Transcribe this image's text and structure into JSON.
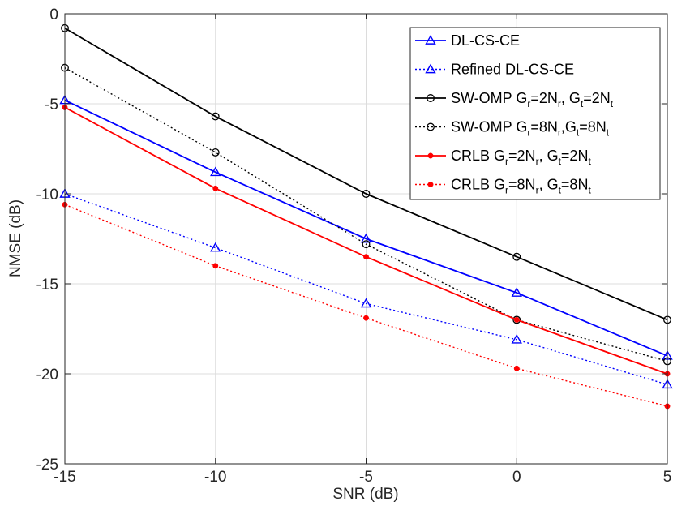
{
  "chart_data": {
    "type": "line",
    "title": "",
    "xlabel": "SNR (dB)",
    "ylabel": "NMSE (dB)",
    "xlim": [
      -15,
      5
    ],
    "ylim": [
      -25,
      0
    ],
    "xticks": [
      -15,
      -10,
      -5,
      0,
      5
    ],
    "yticks": [
      0,
      -5,
      -10,
      -15,
      -20,
      -25
    ],
    "xtick_labels": [
      "-15",
      "-10",
      "-5",
      "0",
      "5"
    ],
    "ytick_labels": [
      "0",
      "-5",
      "-10",
      "-15",
      "-20",
      "-25"
    ],
    "grid": true,
    "legend_position": "top-right",
    "x": [
      -15,
      -10,
      -5,
      0,
      5
    ],
    "series": [
      {
        "name": "DL-CS-CE",
        "legend": [
          "DL-CS-CE"
        ],
        "color": "#0000ff",
        "dash": "solid",
        "marker": "triangle-open",
        "values": [
          -4.8,
          -8.8,
          -12.5,
          -15.5,
          -19.0
        ]
      },
      {
        "name": "Refined DL-CS-CE",
        "legend": [
          "Refined DL-CS-CE"
        ],
        "color": "#0000ff",
        "dash": "dotted",
        "marker": "triangle-open",
        "values": [
          -10.0,
          -13.0,
          -16.1,
          -18.1,
          -20.6
        ]
      },
      {
        "name": "SW-OMP Gr=2Nr, Gt=2Nt",
        "legend": [
          "SW-OMP G",
          "r",
          "=2N",
          "r",
          ", G",
          "t",
          "=2N",
          "t"
        ],
        "color": "#000000",
        "dash": "solid",
        "marker": "circle-open",
        "values": [
          -0.8,
          -5.7,
          -10.0,
          -13.5,
          -17.0
        ]
      },
      {
        "name": "SW-OMP Gr=8Nr,Gt=8Nt",
        "legend": [
          "SW-OMP G",
          "r",
          "=8N",
          "r",
          ",G",
          "t",
          "=8N",
          "t"
        ],
        "color": "#000000",
        "dash": "dotted",
        "marker": "circle-open",
        "values": [
          -3.0,
          -7.7,
          -12.8,
          -17.0,
          -19.3
        ]
      },
      {
        "name": "CRLB Gr=2Nr, Gt=2Nt",
        "legend": [
          "CRLB G",
          "r",
          "=2N",
          "r",
          ", G",
          "t",
          "=2N",
          "t"
        ],
        "color": "#ff0000",
        "dash": "solid",
        "marker": "dot",
        "values": [
          -5.2,
          -9.7,
          -13.5,
          -17.0,
          -20.0
        ]
      },
      {
        "name": "CRLB Gr=8Nr, Gt=8Nt",
        "legend": [
          "CRLB G",
          "r",
          "=8N",
          "r",
          ", G",
          "t",
          "=8N",
          "t"
        ],
        "color": "#ff0000",
        "dash": "dotted",
        "marker": "dot",
        "values": [
          -10.6,
          -14.0,
          -16.9,
          -19.7,
          -21.8
        ]
      }
    ]
  }
}
